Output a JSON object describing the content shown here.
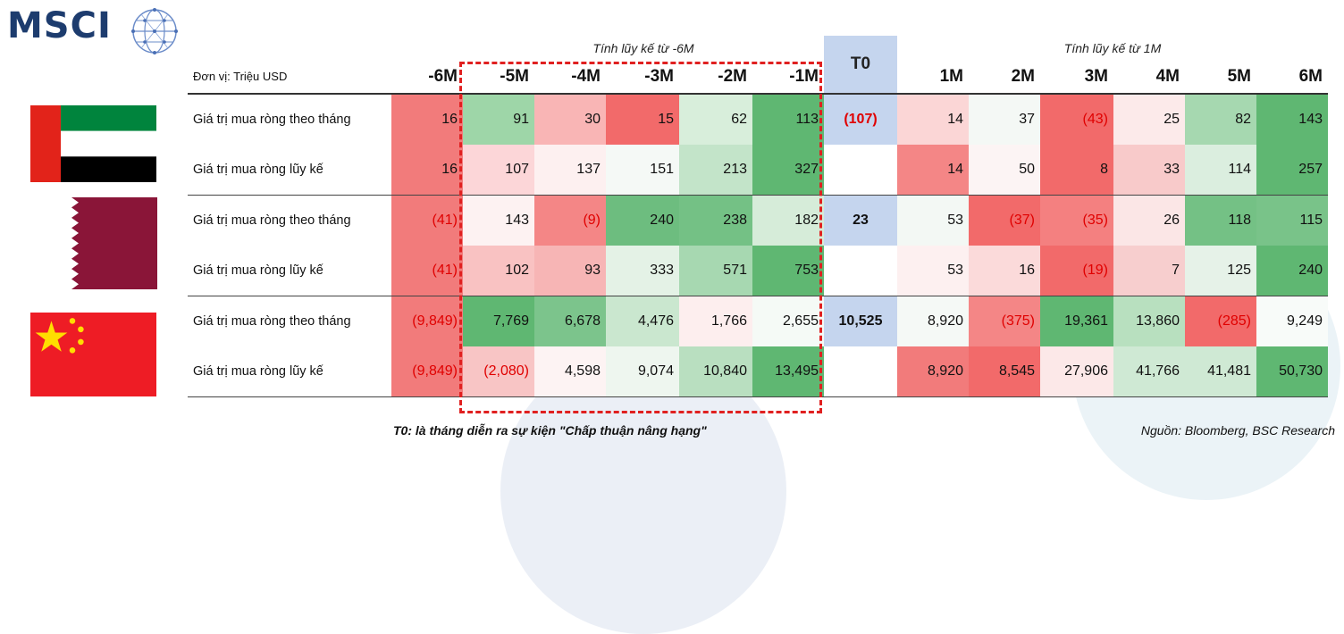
{
  "brand": {
    "name": "MSCI"
  },
  "headers": {
    "group_left": "Tính lũy kế từ -6M",
    "group_right": "Tính lũy kế từ 1M",
    "unit": "Đơn vị: Triệu USD",
    "columns": [
      "-6M",
      "-5M",
      "-4M",
      "-3M",
      "-2M",
      "-1M",
      "T0",
      "1M",
      "2M",
      "3M",
      "4M",
      "5M",
      "6M"
    ]
  },
  "rows": [
    {
      "country": "uae",
      "label": "Giá trị mua ròng theo tháng",
      "cells": [
        {
          "v": "16",
          "bg": "#f27b7b"
        },
        {
          "v": "91",
          "bg": "#9ed6a8"
        },
        {
          "v": "30",
          "bg": "#f9b5b5"
        },
        {
          "v": "15",
          "bg": "#f26a6a"
        },
        {
          "v": "62",
          "bg": "#d8eedb"
        },
        {
          "v": "113",
          "bg": "#5fb772"
        },
        {
          "v": "(107)",
          "neg": true,
          "bg": "#c5d5ee"
        },
        {
          "v": "14",
          "bg": "#fbd6d6"
        },
        {
          "v": "37",
          "bg": "#f4f8f5"
        },
        {
          "v": "(43)",
          "neg": true,
          "bg": "#f26a6a"
        },
        {
          "v": "25",
          "bg": "#fceaea"
        },
        {
          "v": "82",
          "bg": "#a6d8b0"
        },
        {
          "v": "143",
          "bg": "#5fb772"
        }
      ]
    },
    {
      "country": "uae",
      "label": "Giá trị mua ròng lũy kế",
      "cells": [
        {
          "v": "16",
          "bg": "#f27b7b"
        },
        {
          "v": "107",
          "bg": "#fcd6d8"
        },
        {
          "v": "137",
          "bg": "#fdf0f0"
        },
        {
          "v": "151",
          "bg": "#f5f9f6"
        },
        {
          "v": "213",
          "bg": "#c3e4c9"
        },
        {
          "v": "327",
          "bg": "#5fb772"
        },
        {
          "v": "",
          "bg": "#ffffff"
        },
        {
          "v": "14",
          "bg": "#f48686"
        },
        {
          "v": "50",
          "bg": "#fcf4f4"
        },
        {
          "v": "8",
          "bg": "#f26a6a"
        },
        {
          "v": "33",
          "bg": "#f8caca"
        },
        {
          "v": "114",
          "bg": "#dbeedf"
        },
        {
          "v": "257",
          "bg": "#5fb772"
        }
      ]
    },
    {
      "country": "qatar",
      "label": "Giá trị mua ròng theo tháng",
      "cells": [
        {
          "v": "(41)",
          "neg": true,
          "bg": "#f27b7b"
        },
        {
          "v": "143",
          "bg": "#fdf2f2"
        },
        {
          "v": "(9)",
          "neg": true,
          "bg": "#f48686"
        },
        {
          "v": "240",
          "bg": "#6dbd7f"
        },
        {
          "v": "238",
          "bg": "#74c185"
        },
        {
          "v": "182",
          "bg": "#d6ecd9"
        },
        {
          "v": "23",
          "bg": "#c5d5ee"
        },
        {
          "v": "53",
          "bg": "#f3f8f4"
        },
        {
          "v": "(37)",
          "neg": true,
          "bg": "#f26a6a"
        },
        {
          "v": "(35)",
          "neg": true,
          "bg": "#f48080"
        },
        {
          "v": "26",
          "bg": "#fbe6e6"
        },
        {
          "v": "118",
          "bg": "#74c185"
        },
        {
          "v": "115",
          "bg": "#79c389"
        }
      ]
    },
    {
      "country": "qatar",
      "label": "Giá trị mua ròng lũy kế",
      "cells": [
        {
          "v": "(41)",
          "neg": true,
          "bg": "#f27b7b"
        },
        {
          "v": "102",
          "bg": "#f9c2c2"
        },
        {
          "v": "93",
          "bg": "#f7b5b5"
        },
        {
          "v": "333",
          "bg": "#e4f2e6"
        },
        {
          "v": "571",
          "bg": "#a7d8b1"
        },
        {
          "v": "753",
          "bg": "#5fb772"
        },
        {
          "v": "",
          "bg": "#ffffff"
        },
        {
          "v": "53",
          "bg": "#fdf0f0"
        },
        {
          "v": "16",
          "bg": "#fbdada"
        },
        {
          "v": "(19)",
          "neg": true,
          "bg": "#f26a6a"
        },
        {
          "v": "7",
          "bg": "#f7cece"
        },
        {
          "v": "125",
          "bg": "#e6f2e8"
        },
        {
          "v": "240",
          "bg": "#5fb772"
        }
      ]
    },
    {
      "country": "china",
      "label": "Giá trị mua ròng theo tháng",
      "cells": [
        {
          "v": "(9,849)",
          "neg": true,
          "bg": "#f27b7b"
        },
        {
          "v": "7,769",
          "bg": "#5fb772"
        },
        {
          "v": "6,678",
          "bg": "#7cc48c"
        },
        {
          "v": "4,476",
          "bg": "#cae7cf"
        },
        {
          "v": "1,766",
          "bg": "#fdeeee"
        },
        {
          "v": "2,655",
          "bg": "#f5faf6"
        },
        {
          "v": "10,525",
          "bg": "#c5d5ee"
        },
        {
          "v": "8,920",
          "bg": "#f5f9f6"
        },
        {
          "v": "(375)",
          "neg": true,
          "bg": "#f48686"
        },
        {
          "v": "19,361",
          "bg": "#5fb772"
        },
        {
          "v": "13,860",
          "bg": "#b8e0bf"
        },
        {
          "v": "(285)",
          "neg": true,
          "bg": "#f26a6a"
        },
        {
          "v": "9,249",
          "bg": "#f8fbf9"
        }
      ]
    },
    {
      "country": "china",
      "label": "Giá trị mua ròng lũy kế",
      "cells": [
        {
          "v": "(9,849)",
          "neg": true,
          "bg": "#f27b7b"
        },
        {
          "v": "(2,080)",
          "neg": true,
          "bg": "#f8c5c5"
        },
        {
          "v": "4,598",
          "bg": "#fdf3f3"
        },
        {
          "v": "9,074",
          "bg": "#eef6ef"
        },
        {
          "v": "10,840",
          "bg": "#b9dfc0"
        },
        {
          "v": "13,495",
          "bg": "#5fb772"
        },
        {
          "v": "",
          "bg": "#ffffff"
        },
        {
          "v": "8,920",
          "bg": "#f27b7b"
        },
        {
          "v": "8,545",
          "bg": "#f26a6a"
        },
        {
          "v": "27,906",
          "bg": "#fce8e8"
        },
        {
          "v": "41,766",
          "bg": "#cfe9d4"
        },
        {
          "v": "41,481",
          "bg": "#cfe9d4"
        },
        {
          "v": "50,730",
          "bg": "#5fb772"
        }
      ]
    }
  ],
  "footer": {
    "note": "T0: là tháng diễn ra sự kiện \"Chấp thuận nâng hạng\"",
    "source": "Nguồn: Bloomberg, BSC Research"
  },
  "colors": {
    "red": "#f26a6a",
    "green": "#5fb772",
    "t0_blue": "#c5d5ee",
    "highlight_border": "#e02020",
    "brand": "#1d3c6e"
  },
  "icons": {
    "logo": "msci-globe-icon",
    "flags": [
      "uae-flag",
      "qatar-flag",
      "china-flag"
    ]
  }
}
